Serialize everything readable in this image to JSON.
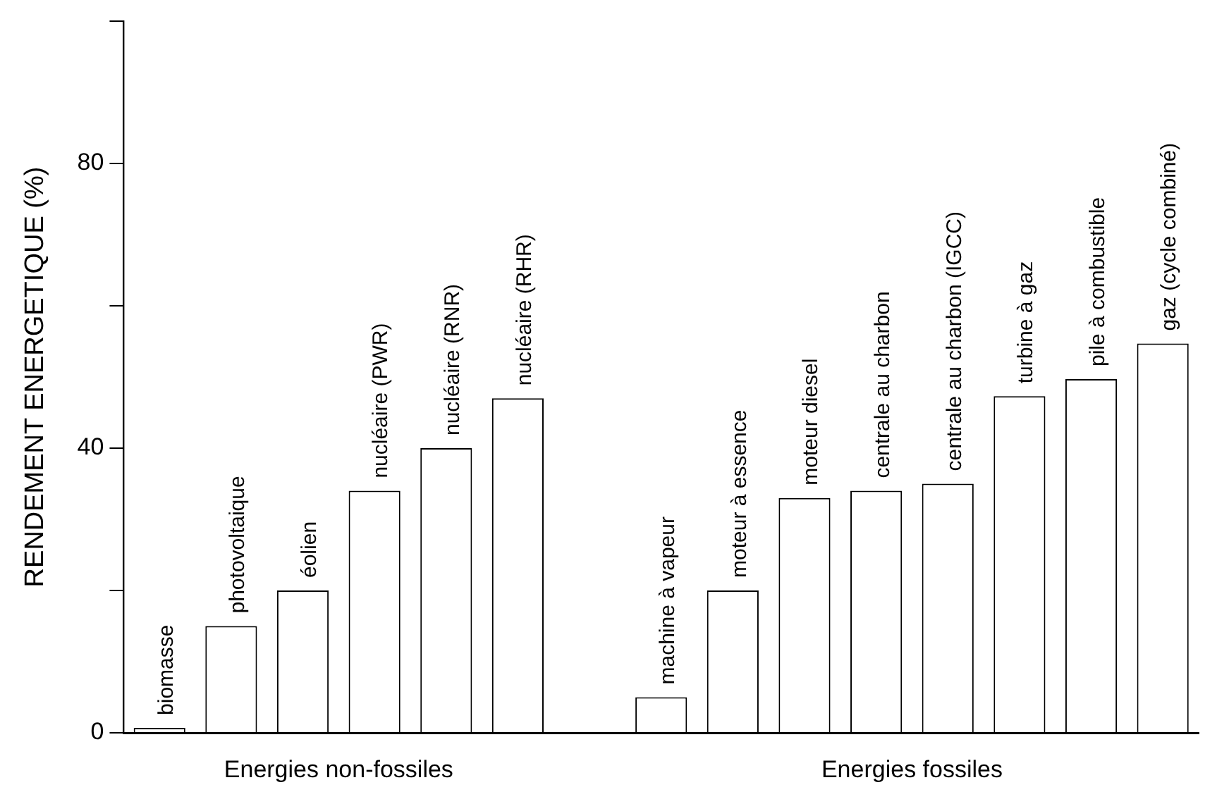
{
  "chart_data": {
    "type": "bar",
    "ylabel": "RENDEMENT ENERGETIQUE (%)",
    "categories": [
      "biomasse",
      "photovoltaique",
      "éolien",
      "nucléaire (PWR)",
      "nucléaire (RNR)",
      "nucléaire (RHR)",
      null,
      "machine à vapeur",
      "moteur à essence",
      "moteur diesel",
      "centrale au charbon",
      "centrale au charbon (IGCC)",
      "turbine à gaz",
      "pile à combustible",
      "gaz (cycle combiné)"
    ],
    "values": [
      0.7,
      15,
      20,
      34,
      40,
      47,
      null,
      5,
      20,
      33,
      34,
      35,
      47.3,
      49.7,
      54.7
    ],
    "color": "#ffffff",
    "ylim": [
      0,
      100
    ],
    "yticks": [
      0,
      {
        "value": 20,
        "label": null
      },
      40,
      {
        "value": 60,
        "label": null
      },
      80,
      {
        "value": 100,
        "label": null
      }
    ],
    "grid": false,
    "legend": false,
    "annotations": [
      "Energies non-fossiles",
      "Energies fossiles"
    ]
  }
}
